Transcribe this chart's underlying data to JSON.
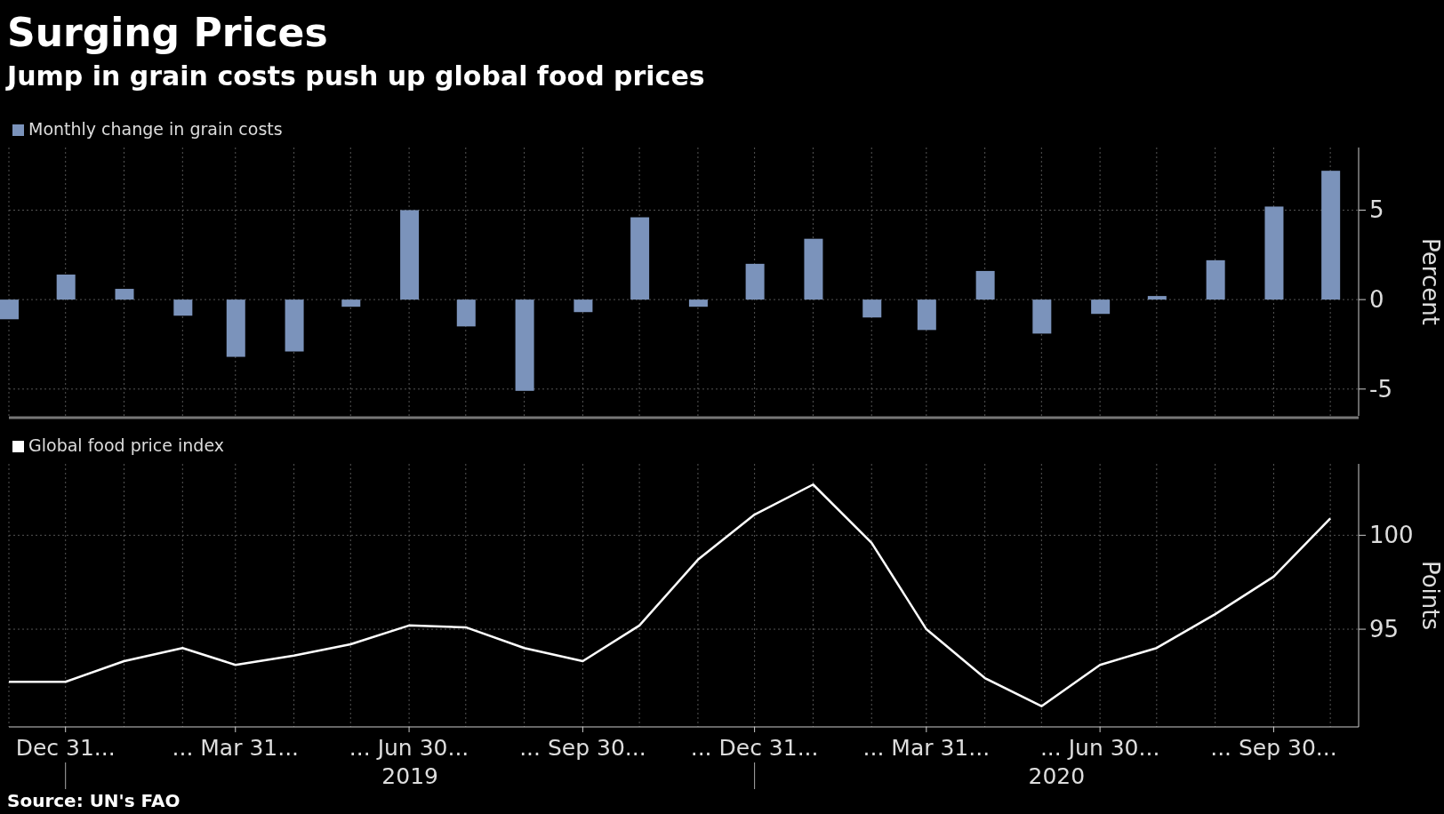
{
  "chart_data": [
    {
      "type": "bar",
      "title": "Surging Prices",
      "subtitle": "Jump in grain costs push up global food prices",
      "ylabel": "Percent",
      "x": [
        "2018-11",
        "2018-12",
        "2019-01",
        "2019-02",
        "2019-03",
        "2019-04",
        "2019-05",
        "2019-06",
        "2019-07",
        "2019-08",
        "2019-09",
        "2019-10",
        "2019-11",
        "2019-12",
        "2020-01",
        "2020-02",
        "2020-03",
        "2020-04",
        "2020-05",
        "2020-06",
        "2020-07",
        "2020-08",
        "2020-09",
        "2020-10"
      ],
      "series": [
        {
          "name": "Monthly change in grain costs",
          "color": "#7b93bb",
          "values": [
            -1.1,
            1.4,
            0.6,
            -0.9,
            -3.2,
            -2.9,
            -0.4,
            5.0,
            -1.5,
            -5.1,
            -0.7,
            4.6,
            -0.4,
            2.0,
            3.4,
            -1.0,
            -1.7,
            1.6,
            -1.9,
            -0.8,
            0.2,
            2.2,
            5.2,
            7.2
          ]
        }
      ],
      "xlim": [
        "2018-11-01",
        "2020-10-16"
      ],
      "ylim": [
        -6.5,
        8.5
      ],
      "yticks": [
        -5,
        0,
        5
      ],
      "grid": true,
      "legend": "top left",
      "tick_labels": "y"
    },
    {
      "type": "line",
      "ylabel": "Points",
      "x": [
        "2018-11",
        "2018-12",
        "2019-01",
        "2019-02",
        "2019-03",
        "2019-04",
        "2019-05",
        "2019-06",
        "2019-07",
        "2019-08",
        "2019-09",
        "2019-10",
        "2019-11",
        "2019-12",
        "2020-01",
        "2020-02",
        "2020-03",
        "2020-04",
        "2020-05",
        "2020-06",
        "2020-07",
        "2020-08",
        "2020-09",
        "2020-10"
      ],
      "series": [
        {
          "name": "Global food price index",
          "color": "#ffffff",
          "values": [
            92.2,
            92.2,
            93.3,
            94.0,
            93.1,
            93.6,
            94.2,
            95.2,
            95.1,
            94.0,
            93.3,
            95.2,
            98.7,
            101.1,
            102.7,
            99.6,
            95.0,
            92.4,
            90.9,
            93.1,
            94.0,
            95.8,
            97.8,
            100.9
          ]
        }
      ],
      "xlim": [
        "2018-11-01",
        "2020-10-16"
      ],
      "ylim": [
        89.8,
        103.8
      ],
      "yticks": [
        95,
        100
      ],
      "xticks": [
        {
          "value": "2018-12",
          "label": "Dec 31..."
        },
        {
          "value": "2019-03",
          "label": "... Mar 31..."
        },
        {
          "value": "2019-06",
          "label": "... Jun 30..."
        },
        {
          "value": "2019-09",
          "label": "... Sep 30..."
        },
        {
          "value": "2019-12",
          "label": "... Dec 31..."
        },
        {
          "value": "2020-03",
          "label": "... Mar 31..."
        },
        {
          "value": "2020-06",
          "label": "... Jun 30..."
        },
        {
          "value": "2020-09",
          "label": "... Sep 30..."
        }
      ],
      "grid": true,
      "legend": "top left",
      "annotations": [
        "2019",
        "2020",
        "Source: UN's FAO"
      ]
    }
  ]
}
